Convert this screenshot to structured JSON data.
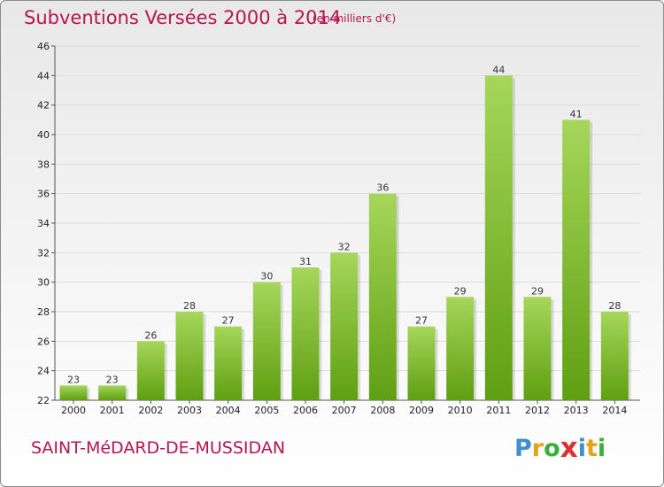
{
  "header": {
    "title": "Subventions Versées 2000 à 2014",
    "subtitle": "(en milliers d'€)"
  },
  "footer": {
    "city": "SAINT-MéDARD-DE-MUSSIDAN",
    "brand": {
      "letters": [
        "P",
        "r",
        "o",
        "x",
        "i",
        "t",
        "i"
      ],
      "colors": [
        "#3d8fd1",
        "#e2a31b",
        "#3cae3c",
        "#d9332f",
        "#3d8fd1",
        "#e2a31b",
        "#3cae3c"
      ]
    }
  },
  "colors": {
    "title": "#b5164f",
    "bar_light": "#a6d65a",
    "bar_dark": "#5f9f12",
    "grid": "#dddddd"
  },
  "chart_data": {
    "type": "bar",
    "title": "Subventions Versées 2000 à 2014",
    "xlabel": "",
    "ylabel": "",
    "categories": [
      "2000",
      "2001",
      "2002",
      "2003",
      "2004",
      "2005",
      "2006",
      "2007",
      "2008",
      "2009",
      "2010",
      "2011",
      "2012",
      "2013",
      "2014"
    ],
    "values": [
      23,
      23,
      26,
      28,
      27,
      30,
      31,
      32,
      36,
      27,
      29,
      44,
      29,
      41,
      28
    ],
    "ylim": [
      22,
      46
    ],
    "yticks": [
      22,
      24,
      26,
      28,
      30,
      32,
      34,
      36,
      38,
      40,
      42,
      44,
      46
    ],
    "grid": true,
    "legend": "none"
  }
}
